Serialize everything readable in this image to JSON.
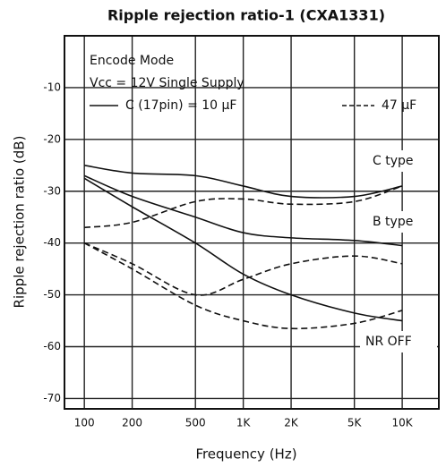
{
  "chart_data": {
    "type": "line",
    "title": "Ripple rejection ratio-1 (CXA1331)",
    "x_label": "Frequency (Hz)",
    "y_label": "Ripple rejection ratio (dB)",
    "x_log": true,
    "grid": true,
    "x": [
      100,
      200,
      500,
      1000,
      2000,
      5000,
      10000
    ],
    "xlim": [
      75,
      17000
    ],
    "ylim": [
      -72,
      0
    ],
    "xticks": [
      {
        "value": 100,
        "label": "100"
      },
      {
        "value": 200,
        "label": "200"
      },
      {
        "value": 500,
        "label": "500"
      },
      {
        "value": 1000,
        "label": "1K"
      },
      {
        "value": 2000,
        "label": "2K"
      },
      {
        "value": 5000,
        "label": "5K"
      },
      {
        "value": 10000,
        "label": "10K"
      }
    ],
    "yticks": [
      -10,
      -20,
      -30,
      -40,
      -50,
      -60,
      -70
    ],
    "legend_lines": [
      "Encode Mode",
      "Vcc = 12V Single Supply",
      "C (17pin) = 10 µF",
      "47 µF"
    ],
    "annotations": [
      "C type",
      "B type",
      "NR OFF"
    ],
    "series": [
      {
        "style": "solid",
        "color": "#111",
        "values": [
          -25,
          -26.5,
          -27,
          -29,
          -31,
          -31,
          -29
        ]
      },
      {
        "style": "dashed",
        "color": "#111",
        "values": [
          -37,
          -36,
          -32,
          -31.5,
          -32.5,
          -32,
          -29
        ]
      },
      {
        "style": "solid",
        "color": "#111",
        "values": [
          -27,
          -31,
          -35,
          -38,
          -39,
          -39.5,
          -40.5
        ]
      },
      {
        "style": "dashed",
        "color": "#111",
        "values": [
          -40,
          -44,
          -50,
          -47,
          -44,
          -42.5,
          -44
        ]
      },
      {
        "style": "solid",
        "color": "#111",
        "values": [
          -27.5,
          -33,
          -40,
          -46,
          -50,
          -53.5,
          -55
        ]
      },
      {
        "style": "dashed",
        "color": "#111",
        "values": [
          -40,
          -45,
          -52,
          -55,
          -56.5,
          -55.5,
          -53
        ]
      }
    ]
  }
}
